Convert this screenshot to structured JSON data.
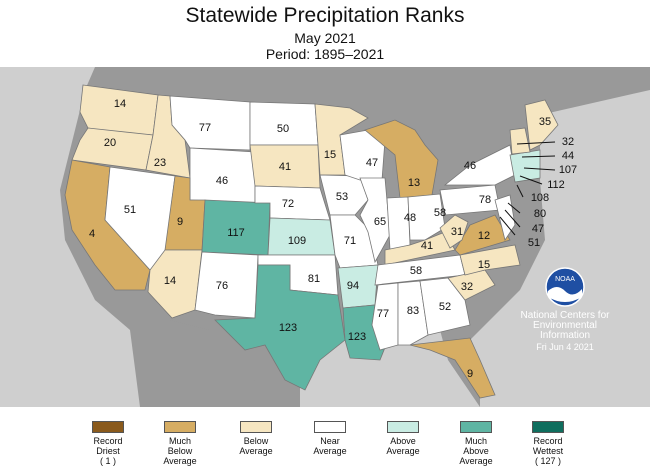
{
  "header": {
    "title": "Statewide Precipitation Ranks",
    "subtitle": "May 2021",
    "period": "Period: 1895–2021"
  },
  "colors": {
    "record_driest": "#8a5a1c",
    "much_below": "#d6ad63",
    "below": "#f6e6c1",
    "near": "#ffffff",
    "above": "#c9ece3",
    "much_above": "#5fb5a3",
    "record_wettest": "#0f6e5e",
    "background_land": "#999999",
    "ocean": "#cfcfcf"
  },
  "state_ranks": {
    "WA": "14",
    "OR": "20",
    "ID": "23",
    "MT": "77",
    "ND": "50",
    "MN": "15",
    "CA": "4",
    "NV": "51",
    "UT": "9",
    "WY": "46",
    "SD": "41",
    "WI": "47",
    "MI": "13",
    "AZ": "14",
    "CO": "117",
    "NE": "72",
    "IA": "53",
    "IL": "65",
    "IN": "48",
    "OH": "58",
    "NM": "76",
    "KS": "109",
    "MO": "71",
    "KY": "41",
    "WV": "31",
    "VA": "12",
    "TX": "123",
    "OK": "81",
    "AR": "94",
    "TN": "58",
    "NC": "15",
    "SC": "32",
    "LA": "123",
    "MS": "77",
    "AL": "83",
    "GA": "52",
    "FL": "9",
    "NY": "46",
    "PA": "78",
    "ME": "35"
  },
  "east_callouts": [
    "32",
    "44",
    "107",
    "112",
    "108",
    "80",
    "47",
    "51"
  ],
  "agency": {
    "logo": "NOAA",
    "line1": "National Centers for",
    "line2": "Environmental",
    "line3": "Information",
    "date": "Fri Jun  4 2021"
  },
  "legend": [
    {
      "l1": "Record",
      "l2": "Driest",
      "l3": "( 1 )",
      "color": "#8a5a1c"
    },
    {
      "l1": "Much",
      "l2": "Below",
      "l3": "Average",
      "color": "#d6ad63"
    },
    {
      "l1": "Below",
      "l2": "Average",
      "l3": "",
      "color": "#f6e6c1"
    },
    {
      "l1": "Near",
      "l2": "Average",
      "l3": "",
      "color": "#ffffff"
    },
    {
      "l1": "Above",
      "l2": "Average",
      "l3": "",
      "color": "#c9ece3"
    },
    {
      "l1": "Much",
      "l2": "Above",
      "l3": "Average",
      "color": "#5fb5a3"
    },
    {
      "l1": "Record",
      "l2": "Wettest",
      "l3": "( 127 )",
      "color": "#0f6e5e"
    }
  ]
}
